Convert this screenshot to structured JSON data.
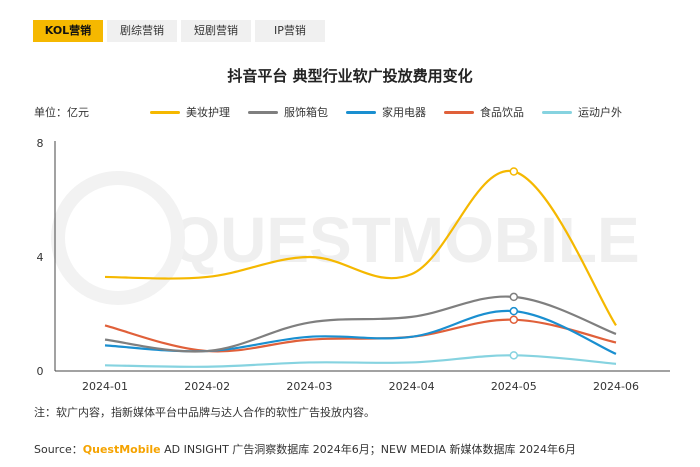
{
  "tabs": [
    {
      "label": "KOL营销",
      "active": true
    },
    {
      "label": "剧综营销",
      "active": false
    },
    {
      "label": "短剧营销",
      "active": false
    },
    {
      "label": "IP营销",
      "active": false
    }
  ],
  "watermark": "QUESTMOBILE",
  "note": "注：软广内容，指新媒体平台中品牌与达人合作的软性广告投放内容。",
  "source": {
    "prefix": "Source：",
    "brand": "QuestMobile",
    "text": " AD INSIGHT 广告洞察数据库 2024年6月；NEW MEDIA 新媒体数据库 2024年6月"
  },
  "chart_data": {
    "type": "line",
    "title": "抖音平台 典型行业软广投放费用变化",
    "unit_label": "单位：亿元",
    "categories": [
      "2024-01",
      "2024-02",
      "2024-03",
      "2024-04",
      "2024-05",
      "2024-06"
    ],
    "ylim": [
      0,
      8
    ],
    "yticks": [
      0,
      4,
      8
    ],
    "grid": false,
    "legend_position": "top",
    "highlight_index": 4,
    "series": [
      {
        "name": "美妆护理",
        "color": "#f5b800",
        "values": [
          3.3,
          3.3,
          4.0,
          3.4,
          7.0,
          1.6
        ]
      },
      {
        "name": "服饰箱包",
        "color": "#7f7f7f",
        "values": [
          1.1,
          0.7,
          1.7,
          1.9,
          2.6,
          1.3
        ]
      },
      {
        "name": "家用电器",
        "color": "#1a8fd0",
        "values": [
          0.9,
          0.7,
          1.2,
          1.2,
          2.1,
          0.6
        ]
      },
      {
        "name": "食品饮品",
        "color": "#e0603a",
        "values": [
          1.6,
          0.7,
          1.1,
          1.2,
          1.8,
          1.0
        ]
      },
      {
        "name": "运动户外",
        "color": "#86d3e0",
        "values": [
          0.2,
          0.15,
          0.3,
          0.3,
          0.55,
          0.25
        ]
      }
    ]
  }
}
